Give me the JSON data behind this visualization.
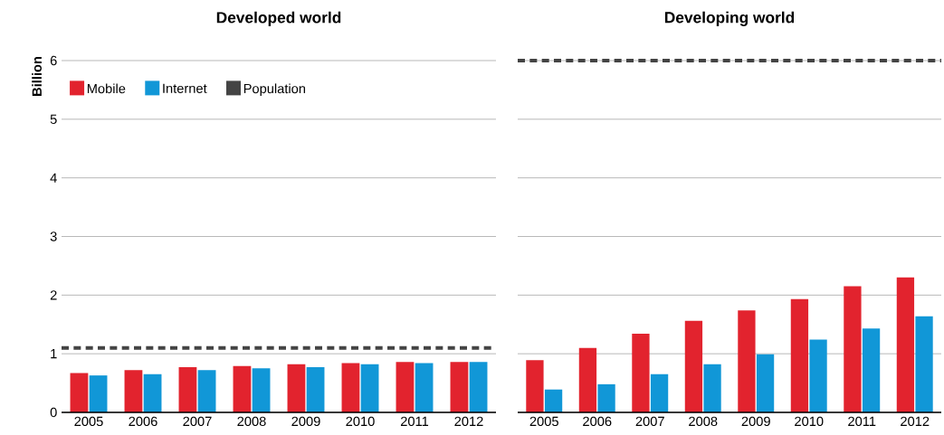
{
  "chart_data": [
    {
      "type": "bar",
      "title": "Developed world",
      "ylabel": "Billion",
      "categories": [
        "2005",
        "2006",
        "2007",
        "2008",
        "2009",
        "2010",
        "2011",
        "2012"
      ],
      "series": [
        {
          "name": "Mobile",
          "color": "#e2232e",
          "values": [
            0.67,
            0.72,
            0.77,
            0.79,
            0.82,
            0.84,
            0.86,
            0.86
          ]
        },
        {
          "name": "Internet",
          "color": "#1197d7",
          "values": [
            0.63,
            0.65,
            0.72,
            0.75,
            0.77,
            0.82,
            0.84,
            0.86
          ]
        }
      ],
      "ref_lines": [
        {
          "axis": "y",
          "value": 1.1,
          "label": "Population",
          "color": "#444444",
          "line_style": "dashed"
        }
      ],
      "ylim": [
        0,
        6
      ],
      "yticks": [
        0,
        1,
        2,
        3,
        4,
        5,
        6
      ],
      "grid": "y",
      "legend": "top left"
    },
    {
      "type": "bar",
      "title": "Developing world",
      "categories": [
        "2005",
        "2006",
        "2007",
        "2008",
        "2009",
        "2010",
        "2011",
        "2012"
      ],
      "series": [
        {
          "color": "#e2232e",
          "values": [
            0.89,
            1.1,
            1.34,
            1.56,
            1.74,
            1.93,
            2.15,
            2.3
          ]
        },
        {
          "color": "#1197d7",
          "values": [
            0.39,
            0.48,
            0.65,
            0.82,
            0.99,
            1.24,
            1.43,
            1.64
          ]
        }
      ],
      "ref_lines": [
        {
          "axis": "y",
          "value": 6,
          "color": "#444444",
          "line_style": "dashed"
        }
      ],
      "ylim": [
        0,
        6
      ],
      "yticks": [
        0,
        1,
        2,
        3,
        4,
        5,
        6
      ],
      "grid": "y",
      "tick_labels": "x"
    }
  ]
}
